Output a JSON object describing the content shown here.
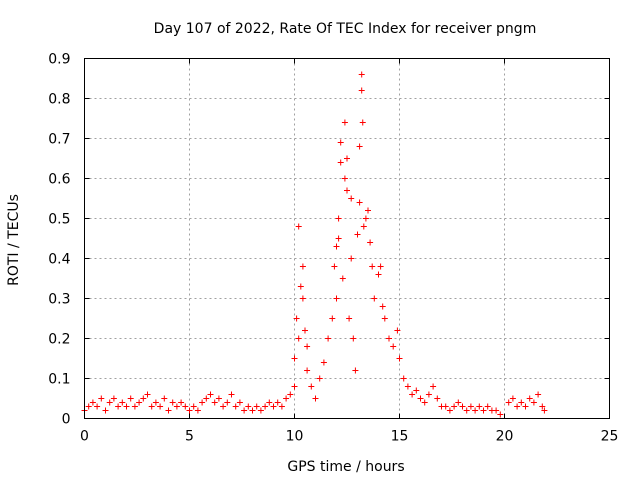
{
  "chart_data": {
    "type": "scatter",
    "title": "Day 107 of 2022, Rate Of TEC Index for receiver pngm",
    "xlabel": "GPS time / hours",
    "ylabel": "ROTI / TECUs",
    "xlim": [
      0,
      25
    ],
    "ylim": [
      0,
      0.9
    ],
    "xticks": [
      "0",
      "5",
      "10",
      "15",
      "20",
      "25"
    ],
    "yticks": [
      "0",
      "0.1",
      "0.2",
      "0.3",
      "0.4",
      "0.5",
      "0.6",
      "0.7",
      "0.8",
      "0.9"
    ],
    "grid": true,
    "marker": "+",
    "color": "#ff0000",
    "series": [
      {
        "points": [
          [
            0.0,
            0.02
          ],
          [
            0.2,
            0.03
          ],
          [
            0.4,
            0.04
          ],
          [
            0.6,
            0.03
          ],
          [
            0.8,
            0.05
          ],
          [
            1.0,
            0.02
          ],
          [
            1.2,
            0.04
          ],
          [
            1.4,
            0.05
          ],
          [
            1.6,
            0.03
          ],
          [
            1.8,
            0.04
          ],
          [
            2.0,
            0.03
          ],
          [
            2.2,
            0.05
          ],
          [
            2.4,
            0.03
          ],
          [
            2.6,
            0.04
          ],
          [
            2.8,
            0.05
          ],
          [
            3.0,
            0.06
          ],
          [
            3.2,
            0.03
          ],
          [
            3.4,
            0.04
          ],
          [
            3.6,
            0.03
          ],
          [
            3.8,
            0.05
          ],
          [
            4.0,
            0.02
          ],
          [
            4.2,
            0.04
          ],
          [
            4.4,
            0.03
          ],
          [
            4.6,
            0.04
          ],
          [
            4.8,
            0.03
          ],
          [
            5.0,
            0.02
          ],
          [
            5.2,
            0.03
          ],
          [
            5.4,
            0.02
          ],
          [
            5.6,
            0.04
          ],
          [
            5.8,
            0.05
          ],
          [
            6.0,
            0.06
          ],
          [
            6.2,
            0.04
          ],
          [
            6.4,
            0.05
          ],
          [
            6.6,
            0.03
          ],
          [
            6.8,
            0.04
          ],
          [
            7.0,
            0.06
          ],
          [
            7.2,
            0.03
          ],
          [
            7.4,
            0.04
          ],
          [
            7.6,
            0.02
          ],
          [
            7.8,
            0.03
          ],
          [
            8.0,
            0.02
          ],
          [
            8.2,
            0.03
          ],
          [
            8.4,
            0.02
          ],
          [
            8.6,
            0.03
          ],
          [
            8.8,
            0.04
          ],
          [
            9.0,
            0.03
          ],
          [
            9.2,
            0.04
          ],
          [
            9.4,
            0.03
          ],
          [
            9.6,
            0.05
          ],
          [
            9.8,
            0.06
          ],
          [
            10.0,
            0.08
          ],
          [
            10.0,
            0.15
          ],
          [
            10.1,
            0.25
          ],
          [
            10.2,
            0.2
          ],
          [
            10.2,
            0.48
          ],
          [
            10.3,
            0.33
          ],
          [
            10.4,
            0.3
          ],
          [
            10.4,
            0.38
          ],
          [
            10.5,
            0.22
          ],
          [
            10.6,
            0.18
          ],
          [
            10.6,
            0.12
          ],
          [
            10.8,
            0.08
          ],
          [
            11.0,
            0.05
          ],
          [
            11.2,
            0.1
          ],
          [
            11.4,
            0.14
          ],
          [
            11.6,
            0.2
          ],
          [
            11.8,
            0.25
          ],
          [
            11.9,
            0.38
          ],
          [
            12.0,
            0.3
          ],
          [
            12.0,
            0.43
          ],
          [
            12.1,
            0.45
          ],
          [
            12.1,
            0.5
          ],
          [
            12.2,
            0.64
          ],
          [
            12.2,
            0.69
          ],
          [
            12.3,
            0.35
          ],
          [
            12.4,
            0.6
          ],
          [
            12.4,
            0.74
          ],
          [
            12.5,
            0.57
          ],
          [
            12.5,
            0.65
          ],
          [
            12.6,
            0.25
          ],
          [
            12.7,
            0.55
          ],
          [
            12.7,
            0.4
          ],
          [
            12.8,
            0.2
          ],
          [
            12.9,
            0.12
          ],
          [
            13.0,
            0.46
          ],
          [
            13.1,
            0.54
          ],
          [
            13.1,
            0.68
          ],
          [
            13.2,
            0.82
          ],
          [
            13.2,
            0.86
          ],
          [
            13.25,
            0.74
          ],
          [
            13.3,
            0.48
          ],
          [
            13.4,
            0.5
          ],
          [
            13.5,
            0.52
          ],
          [
            13.6,
            0.44
          ],
          [
            13.7,
            0.38
          ],
          [
            13.8,
            0.3
          ],
          [
            14.0,
            0.36
          ],
          [
            14.1,
            0.38
          ],
          [
            14.2,
            0.28
          ],
          [
            14.3,
            0.25
          ],
          [
            14.5,
            0.2
          ],
          [
            14.7,
            0.18
          ],
          [
            14.9,
            0.22
          ],
          [
            15.0,
            0.15
          ],
          [
            15.2,
            0.1
          ],
          [
            15.4,
            0.08
          ],
          [
            15.6,
            0.06
          ],
          [
            15.8,
            0.07
          ],
          [
            16.0,
            0.05
          ],
          [
            16.2,
            0.04
          ],
          [
            16.4,
            0.06
          ],
          [
            16.6,
            0.08
          ],
          [
            16.8,
            0.05
          ],
          [
            17.0,
            0.03
          ],
          [
            17.2,
            0.03
          ],
          [
            17.4,
            0.02
          ],
          [
            17.6,
            0.03
          ],
          [
            17.8,
            0.04
          ],
          [
            18.0,
            0.03
          ],
          [
            18.2,
            0.02
          ],
          [
            18.4,
            0.03
          ],
          [
            18.6,
            0.02
          ],
          [
            18.8,
            0.03
          ],
          [
            19.0,
            0.02
          ],
          [
            19.2,
            0.03
          ],
          [
            19.4,
            0.02
          ],
          [
            19.6,
            0.02
          ],
          [
            19.8,
            0.01
          ],
          [
            20.2,
            0.04
          ],
          [
            20.4,
            0.05
          ],
          [
            20.6,
            0.03
          ],
          [
            20.8,
            0.04
          ],
          [
            21.0,
            0.03
          ],
          [
            21.2,
            0.05
          ],
          [
            21.4,
            0.04
          ],
          [
            21.6,
            0.06
          ],
          [
            21.8,
            0.03
          ],
          [
            21.9,
            0.02
          ]
        ]
      }
    ]
  }
}
